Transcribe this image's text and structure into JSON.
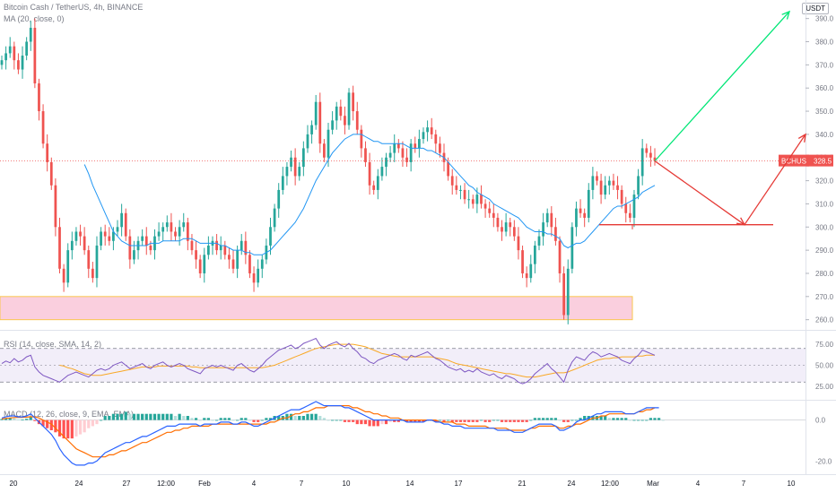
{
  "header": {
    "symbol_title": "Bitcoin Cash / TetherUS, 4h, BINANCE",
    "ma_legend": "MA (20, close, 0)",
    "unit": "USDT",
    "price_tag": {
      "symbol": "BCHUSDT",
      "value": "328.5"
    }
  },
  "rsi_legend": "RSI (14, close, SMA, 14, 2)",
  "macd_legend": "MACD (12, 26, close, 9, EMA, EMA)",
  "colors": {
    "up": "#26a69a",
    "down": "#ef5350",
    "ma": "#2196f3",
    "support_fill": "#f8bbd0",
    "support_border": "#f9c74f",
    "rsi": "#7e57c2",
    "rsi_ma": "#f9a825",
    "macd": "#2962ff",
    "signal": "#ff6d00",
    "arrow_bull": "#00e676",
    "arrow_bear": "#e53935"
  },
  "chart_data": [
    {
      "type": "candlestick",
      "title": "Bitcoin Cash / TetherUS, 4h, BINANCE",
      "x_ticks": [
        "20",
        "24",
        "27",
        "12:00",
        "Feb",
        "4",
        "7",
        "10",
        "14",
        "17",
        "21",
        "24",
        "12:00",
        "Mar",
        "4",
        "7",
        "10"
      ],
      "y_ticks": [
        260,
        270,
        280,
        290,
        300,
        310,
        320,
        330,
        340,
        350,
        360,
        370,
        380,
        390
      ],
      "ylim": [
        256,
        398
      ],
      "close_series": [
        372,
        375,
        378,
        372,
        368,
        374,
        380,
        386,
        362,
        350,
        336,
        328,
        318,
        300,
        282,
        276,
        290,
        294,
        298,
        296,
        290,
        282,
        278,
        292,
        298,
        296,
        294,
        298,
        300,
        306,
        296,
        286,
        290,
        294,
        296,
        292,
        290,
        296,
        298,
        300,
        302,
        298,
        296,
        300,
        302,
        294,
        290,
        286,
        280,
        288,
        292,
        294,
        290,
        292,
        288,
        286,
        282,
        290,
        294,
        288,
        280,
        276,
        282,
        286,
        292,
        300,
        308,
        316,
        322,
        326,
        330,
        322,
        326,
        334,
        340,
        344,
        354,
        336,
        330,
        342,
        346,
        352,
        348,
        344,
        358,
        350,
        342,
        334,
        328,
        318,
        316,
        322,
        326,
        330,
        332,
        336,
        334,
        330,
        328,
        336,
        334,
        338,
        341,
        343,
        340,
        336,
        332,
        328,
        322,
        318,
        316,
        316,
        312,
        312,
        310,
        314,
        310,
        308,
        306,
        304,
        300,
        298,
        302,
        300,
        296,
        290,
        280,
        278,
        284,
        292,
        296,
        302,
        306,
        300,
        294,
        280,
        262,
        282,
        300,
        308,
        306,
        304,
        316,
        322,
        320,
        314,
        318,
        320,
        318,
        316,
        310,
        306,
        304,
        314,
        322,
        334,
        332,
        330,
        328.5
      ],
      "ma_series_name": "MA (20, close, 0)",
      "ma_series": [
        null,
        null,
        null,
        null,
        null,
        null,
        null,
        null,
        null,
        null,
        null,
        null,
        null,
        null,
        null,
        null,
        null,
        null,
        null,
        null,
        327,
        323,
        318,
        314,
        310,
        306,
        302,
        298,
        296,
        294,
        293,
        292,
        292,
        292,
        292,
        292,
        293,
        293,
        293,
        294,
        294,
        294,
        294,
        294,
        295,
        295,
        295,
        294,
        293,
        293,
        293,
        293,
        293,
        292,
        292,
        291,
        290,
        290,
        290,
        289,
        289,
        288,
        288,
        288,
        289,
        290,
        292,
        294,
        296,
        298,
        300,
        302,
        305,
        308,
        312,
        316,
        320,
        323,
        326,
        329,
        332,
        334,
        336,
        338,
        339,
        340,
        340,
        340,
        339,
        338,
        337,
        337,
        336,
        336,
        336,
        336,
        336,
        336,
        335,
        334,
        334,
        334,
        334,
        333,
        333,
        332,
        331,
        330,
        328,
        326,
        324,
        322,
        320,
        318,
        317,
        315,
        314,
        313,
        312,
        310,
        309,
        308,
        307,
        306,
        305,
        304,
        302,
        300,
        299,
        298,
        298,
        298,
        297,
        297,
        296,
        295,
        292,
        291,
        292,
        293,
        293,
        294,
        296,
        298,
        300,
        302,
        304,
        306,
        308,
        309,
        309,
        310,
        311,
        312,
        313,
        315,
        316,
        317,
        318
      ]
    },
    {
      "type": "line",
      "title": "RSI (14, close, SMA, 14, 2)",
      "y_ticks": [
        25.0,
        50.0,
        75.0
      ],
      "ylim": [
        10,
        90
      ],
      "band": [
        30,
        70
      ],
      "series": [
        {
          "values": [
            52,
            55,
            53,
            58,
            54,
            56,
            60,
            62,
            48,
            42,
            38,
            36,
            34,
            32,
            30,
            34,
            38,
            40,
            42,
            40,
            38,
            36,
            40,
            44,
            46,
            44,
            46,
            50,
            52,
            54,
            50,
            46,
            48,
            50,
            52,
            48,
            46,
            50,
            52,
            54,
            50,
            48,
            50,
            52,
            50,
            46,
            44,
            42,
            40,
            46,
            48,
            50,
            48,
            50,
            48,
            46,
            44,
            50,
            52,
            48,
            44,
            42,
            46,
            50,
            56,
            60,
            64,
            68,
            70,
            72,
            74,
            70,
            72,
            76,
            78,
            80,
            82,
            74,
            70,
            74,
            76,
            78,
            74,
            72,
            76,
            70,
            66,
            60,
            58,
            54,
            52,
            56,
            58,
            60,
            62,
            64,
            62,
            58,
            56,
            62,
            60,
            62,
            64,
            66,
            62,
            58,
            56,
            52,
            48,
            46,
            44,
            46,
            42,
            44,
            42,
            46,
            42,
            40,
            38,
            40,
            36,
            34,
            38,
            36,
            34,
            30,
            28,
            30,
            34,
            40,
            44,
            48,
            52,
            46,
            42,
            36,
            30,
            44,
            54,
            60,
            58,
            56,
            62,
            66,
            64,
            60,
            62,
            64,
            62,
            60,
            56,
            54,
            52,
            58,
            62,
            68,
            66,
            64,
            62
          ]
        },
        {
          "values": [
            null,
            null,
            null,
            null,
            null,
            null,
            null,
            null,
            null,
            null,
            null,
            null,
            null,
            null,
            50,
            49,
            47,
            46,
            44,
            42,
            40,
            39,
            38,
            38,
            38,
            39,
            40,
            41,
            42,
            43,
            44,
            45,
            46,
            47,
            48,
            48,
            48,
            48,
            49,
            49,
            49,
            49,
            49,
            49,
            49,
            49,
            48,
            48,
            47,
            47,
            47,
            47,
            47,
            47,
            47,
            47,
            47,
            47,
            47,
            47,
            47,
            47,
            47,
            47,
            48,
            49,
            50,
            52,
            54,
            56,
            58,
            60,
            62,
            64,
            66,
            68,
            70,
            71,
            72,
            73,
            74,
            75,
            75,
            75,
            75,
            75,
            74,
            73,
            72,
            70,
            68,
            66,
            64,
            63,
            62,
            61,
            60,
            60,
            60,
            60,
            60,
            60,
            60,
            60,
            60,
            59,
            58,
            57,
            56,
            54,
            52,
            51,
            50,
            49,
            48,
            47,
            46,
            45,
            44,
            43,
            42,
            41,
            40,
            40,
            39,
            38,
            37,
            36,
            36,
            36,
            37,
            38,
            39,
            40,
            41,
            41,
            41,
            42,
            44,
            46,
            48,
            50,
            52,
            54,
            56,
            57,
            58,
            58,
            59,
            59,
            60,
            60,
            60,
            60,
            61,
            61,
            62,
            62,
            62
          ]
        }
      ]
    },
    {
      "type": "bar",
      "title": "MACD (12, 26, close, 9, EMA, EMA)",
      "y_ticks": [
        0.0,
        -20.0
      ],
      "ylim": [
        -26,
        9
      ],
      "series": [
        {
          "values": [
            1,
            1.5,
            2,
            2,
            1.5,
            1.5,
            2,
            3,
            1,
            -1,
            -3,
            -5,
            -7,
            -10,
            -14,
            -17,
            -19,
            -21,
            -22,
            -22,
            -22,
            -21,
            -21,
            -20,
            -18,
            -16,
            -15,
            -14,
            -13,
            -12,
            -11,
            -11,
            -10,
            -9,
            -8,
            -8,
            -7,
            -6,
            -5,
            -4,
            -3,
            -3,
            -3,
            -2,
            -2,
            -2,
            -2,
            -2,
            -3,
            -2,
            -2,
            -2,
            -2,
            -1,
            -1,
            -1,
            -2,
            -2,
            -1,
            -1,
            -2,
            -3,
            -3,
            -2,
            -1,
            0,
            1,
            2,
            3,
            4,
            5,
            5,
            5,
            6,
            7,
            8,
            9,
            8,
            7,
            7,
            7,
            7,
            7,
            6,
            6,
            5,
            4,
            3,
            2,
            1,
            0,
            0,
            0,
            0,
            0,
            0,
            0,
            0,
            -1,
            -1,
            -1,
            -1,
            -1,
            0,
            0,
            -1,
            -1,
            -2,
            -2,
            -3,
            -3,
            -3,
            -4,
            -4,
            -4,
            -4,
            -4,
            -4,
            -4,
            -4,
            -5,
            -5,
            -5,
            -5,
            -6,
            -6,
            -6,
            -5,
            -4,
            -3,
            -2,
            -2,
            -2,
            -2,
            -3,
            -5,
            -5,
            -4,
            -3,
            -1,
            0,
            0,
            1,
            2,
            3,
            3,
            4,
            4,
            4,
            4,
            4,
            3,
            3,
            3,
            4,
            5,
            6,
            6,
            6,
            6
          ]
        },
        {
          "values": [
            0.5,
            0.8,
            1,
            1.2,
            1.3,
            1.3,
            1.4,
            1.6,
            1.5,
            1,
            0,
            -1,
            -2,
            -4,
            -6,
            -8,
            -10,
            -12,
            -14,
            -15,
            -16,
            -17,
            -18,
            -18,
            -18,
            -18,
            -17,
            -17,
            -16,
            -15,
            -15,
            -14,
            -13,
            -12,
            -11,
            -11,
            -10,
            -9,
            -8,
            -7,
            -6,
            -6,
            -5,
            -5,
            -4,
            -4,
            -3,
            -3,
            -3,
            -3,
            -3,
            -2,
            -2,
            -2,
            -2,
            -2,
            -2,
            -2,
            -2,
            -2,
            -2,
            -2,
            -2,
            -2,
            -2,
            -1,
            -1,
            0,
            1,
            1,
            2,
            3,
            3,
            4,
            4,
            5,
            6,
            6,
            6,
            7,
            7,
            7,
            7,
            7,
            7,
            6,
            6,
            5,
            4,
            4,
            3,
            3,
            2,
            2,
            1,
            1,
            1,
            0,
            0,
            0,
            0,
            0,
            0,
            0,
            0,
            0,
            -1,
            -1,
            -1,
            -1,
            -2,
            -2,
            -2,
            -3,
            -3,
            -3,
            -3,
            -3,
            -4,
            -4,
            -4,
            -4,
            -4,
            -5,
            -5,
            -5,
            -5,
            -5,
            -4,
            -4,
            -3,
            -3,
            -3,
            -3,
            -3,
            -4,
            -4,
            -3,
            -3,
            -2,
            -2,
            -1,
            0,
            1,
            1,
            2,
            2,
            3,
            3,
            3,
            3,
            3,
            3,
            3,
            4,
            4,
            5,
            5,
            6
          ]
        },
        {
          "values": [
            0.5,
            0.7,
            1,
            0.8,
            0.2,
            0.2,
            0.6,
            1.4,
            -0.5,
            -2,
            -3,
            -4,
            -5,
            -6,
            -8,
            -9,
            -9,
            -9,
            -8,
            -7,
            -6,
            -4,
            -3,
            -2,
            0,
            2,
            2,
            3,
            3,
            3,
            4,
            3,
            3,
            3,
            3,
            3,
            3,
            3,
            3,
            3,
            3,
            3,
            2,
            3,
            2,
            2,
            1,
            1,
            0,
            1,
            1,
            0,
            0,
            1,
            1,
            1,
            0,
            0,
            1,
            1,
            0,
            -1,
            -1,
            0,
            1,
            1,
            2,
            2,
            2,
            3,
            3,
            2,
            2,
            2,
            3,
            3,
            3,
            2,
            1,
            0,
            0,
            0,
            0,
            -1,
            -1,
            -1,
            -2,
            -2,
            -2,
            -3,
            -3,
            -3,
            -2,
            -2,
            -1,
            -1,
            -1,
            0,
            -1,
            -1,
            -1,
            -1,
            -1,
            0,
            0,
            -1,
            0,
            -1,
            0,
            -1,
            -1,
            -1,
            -1,
            -1,
            -1,
            -1,
            0,
            -1,
            -1,
            0,
            0,
            -1,
            -1,
            -1,
            -1,
            -1,
            -1,
            -1,
            0,
            1,
            1,
            1,
            1,
            1,
            1,
            0,
            -1,
            -1,
            0,
            0,
            1,
            2,
            2,
            2,
            2,
            2,
            2,
            1,
            1,
            1,
            1,
            1,
            0,
            0,
            0,
            0,
            0,
            1,
            1,
            1,
            0
          ]
        }
      ]
    }
  ]
}
